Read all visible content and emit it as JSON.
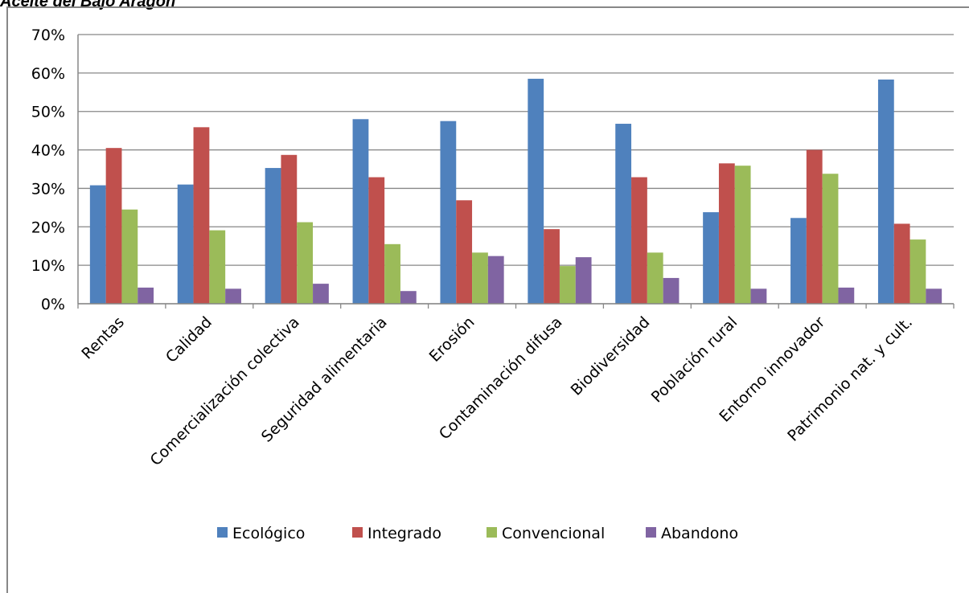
{
  "chart_data": {
    "type": "bar",
    "title": "Aceite del Bajo Aragón",
    "categories": [
      "Rentas",
      "Calidad",
      "Comercialización colectiva",
      "Seguridad alimentaria",
      "Erosión",
      "Contaminación difusa",
      "Biodiversidad",
      "Población rural",
      "Entorno innovador",
      "Patrimonio nat. y cult."
    ],
    "series": [
      {
        "name": "Ecológico",
        "color": "#4f81bd",
        "values": [
          30.8,
          31.0,
          35.3,
          48.0,
          47.5,
          58.5,
          46.8,
          23.8,
          22.3,
          58.3
        ]
      },
      {
        "name": "Integrado",
        "color": "#c0504d",
        "values": [
          40.5,
          45.9,
          38.7,
          32.9,
          26.9,
          19.4,
          32.9,
          36.5,
          40.0,
          20.8
        ]
      },
      {
        "name": "Convencional",
        "color": "#9bbb59",
        "values": [
          24.5,
          19.1,
          21.2,
          15.5,
          13.3,
          9.8,
          13.3,
          35.9,
          33.8,
          16.7
        ]
      },
      {
        "name": "Abandono",
        "color": "#8064a2",
        "values": [
          4.2,
          3.9,
          5.2,
          3.3,
          12.4,
          12.1,
          6.7,
          3.9,
          4.2,
          3.9
        ]
      }
    ],
    "y_ticks": [
      "0%",
      "10%",
      "20%",
      "30%",
      "40%",
      "50%",
      "60%",
      "70%"
    ],
    "ylim": [
      0,
      70
    ],
    "grid": true,
    "legend_position": "bottom"
  }
}
